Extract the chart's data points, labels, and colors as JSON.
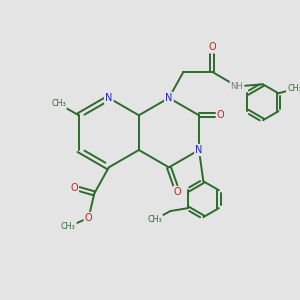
{
  "bg_color": "#e4e4e4",
  "bond_color": "#2d6b2d",
  "bond_width": 1.4,
  "dbo": 0.08,
  "N_color": "#2222cc",
  "O_color": "#cc2020",
  "H_color": "#7a7a7a",
  "fs": 7.0,
  "fig_w": 3.0,
  "fig_h": 3.0,
  "dpi": 100,
  "xlim": [
    0,
    10
  ],
  "ylim": [
    0,
    10
  ]
}
